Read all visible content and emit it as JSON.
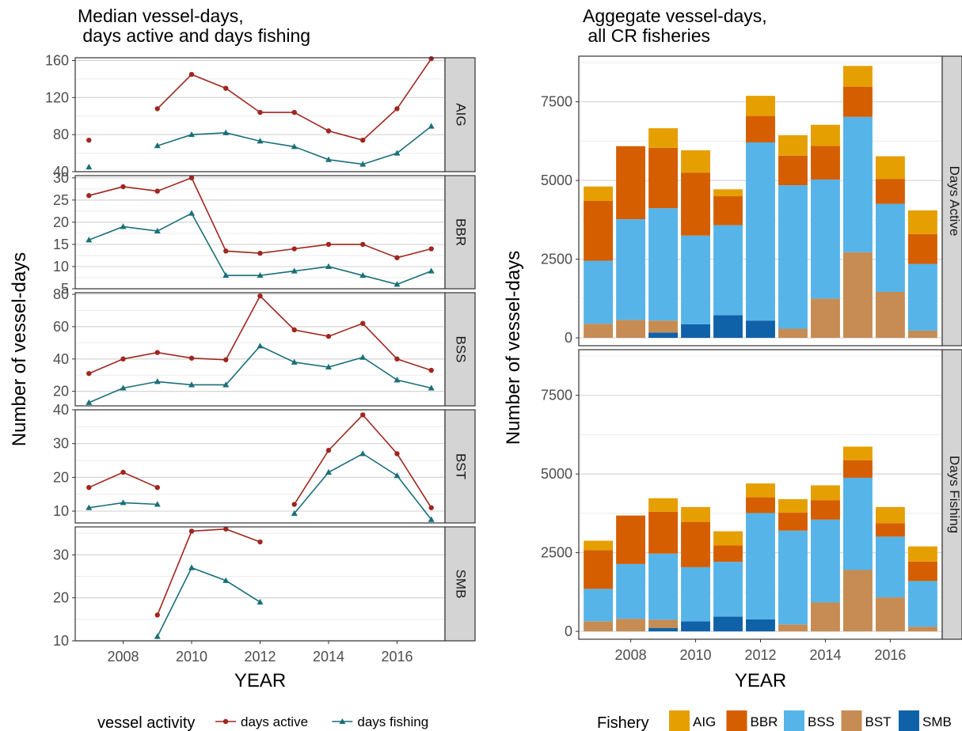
{
  "chart_data": [
    {
      "type": "line",
      "title": "Median vessel-days,\n days active and days fishing",
      "xlabel": "YEAR",
      "ylabel": "Number of vessel-days",
      "x_ticks": [
        2008,
        2010,
        2012,
        2014,
        2016
      ],
      "xlim": [
        2006.6,
        2017.4
      ],
      "legend": {
        "title": "vessel activity",
        "position": "bottom",
        "entries": [
          {
            "name": "days active",
            "color": "#a0261f",
            "marker": "circle"
          },
          {
            "name": "days fishing",
            "color": "#1a6f78",
            "marker": "triangle"
          }
        ]
      },
      "panels": [
        {
          "label": "AIG",
          "ylim": [
            40,
            163
          ],
          "y_ticks": [
            40,
            80,
            120,
            160
          ],
          "series": [
            {
              "name": "days active",
              "segments": [
                [
                  [
                    2007,
                    74
                  ]
                ],
                [
                  [
                    2009,
                    108
                  ],
                  [
                    2010,
                    145
                  ],
                  [
                    2011,
                    130
                  ],
                  [
                    2012,
                    104
                  ],
                  [
                    2013,
                    104
                  ],
                  [
                    2014,
                    84
                  ],
                  [
                    2015,
                    74
                  ],
                  [
                    2016,
                    108
                  ],
                  [
                    2017,
                    162
                  ]
                ]
              ]
            },
            {
              "name": "days fishing",
              "segments": [
                [
                  [
                    2007,
                    45
                  ]
                ],
                [
                  [
                    2009,
                    68
                  ],
                  [
                    2010,
                    80
                  ],
                  [
                    2011,
                    82
                  ],
                  [
                    2012,
                    73
                  ],
                  [
                    2013,
                    67
                  ],
                  [
                    2014,
                    53
                  ],
                  [
                    2015,
                    48
                  ],
                  [
                    2016,
                    60
                  ],
                  [
                    2017,
                    89
                  ]
                ]
              ]
            }
          ]
        },
        {
          "label": "BBR",
          "ylim": [
            5,
            30.5
          ],
          "y_ticks": [
            5,
            10,
            15,
            20,
            25,
            30
          ],
          "series": [
            {
              "name": "days active",
              "segments": [
                [
                  [
                    2007,
                    26
                  ],
                  [
                    2008,
                    28
                  ],
                  [
                    2009,
                    27
                  ],
                  [
                    2010,
                    30
                  ],
                  [
                    2011,
                    13.5
                  ],
                  [
                    2012,
                    13
                  ],
                  [
                    2013,
                    14
                  ],
                  [
                    2014,
                    15
                  ],
                  [
                    2015,
                    15
                  ],
                  [
                    2016,
                    12
                  ],
                  [
                    2017,
                    14
                  ]
                ]
              ]
            },
            {
              "name": "days fishing",
              "segments": [
                [
                  [
                    2007,
                    16
                  ],
                  [
                    2008,
                    19
                  ],
                  [
                    2009,
                    18
                  ],
                  [
                    2010,
                    22
                  ],
                  [
                    2011,
                    8
                  ],
                  [
                    2012,
                    8
                  ],
                  [
                    2013,
                    9
                  ],
                  [
                    2014,
                    10
                  ],
                  [
                    2015,
                    8
                  ],
                  [
                    2016,
                    6
                  ],
                  [
                    2017,
                    9
                  ]
                ]
              ]
            }
          ]
        },
        {
          "label": "BSS",
          "ylim": [
            11,
            81
          ],
          "y_ticks": [
            20,
            40,
            60,
            80
          ],
          "series": [
            {
              "name": "days active",
              "segments": [
                [
                  [
                    2007,
                    31
                  ],
                  [
                    2008,
                    40
                  ],
                  [
                    2009,
                    44
                  ],
                  [
                    2010,
                    40.5
                  ],
                  [
                    2011,
                    39.5
                  ],
                  [
                    2012,
                    79
                  ],
                  [
                    2013,
                    58
                  ],
                  [
                    2014,
                    54
                  ],
                  [
                    2015,
                    62
                  ],
                  [
                    2016,
                    40
                  ],
                  [
                    2017,
                    33
                  ]
                ]
              ]
            },
            {
              "name": "days fishing",
              "segments": [
                [
                  [
                    2007,
                    13
                  ],
                  [
                    2008,
                    22
                  ],
                  [
                    2009,
                    26
                  ],
                  [
                    2010,
                    24
                  ],
                  [
                    2011,
                    24
                  ],
                  [
                    2012,
                    48
                  ],
                  [
                    2013,
                    38
                  ],
                  [
                    2014,
                    35
                  ],
                  [
                    2015,
                    41
                  ],
                  [
                    2016,
                    27
                  ],
                  [
                    2017,
                    22
                  ]
                ]
              ]
            }
          ]
        },
        {
          "label": "BST",
          "ylim": [
            6.5,
            40
          ],
          "y_ticks": [
            10,
            20,
            30,
            40
          ],
          "series": [
            {
              "name": "days active",
              "segments": [
                [
                  [
                    2007,
                    17
                  ],
                  [
                    2008,
                    21.5
                  ],
                  [
                    2009,
                    17
                  ]
                ],
                [
                  [
                    2013,
                    12
                  ],
                  [
                    2014,
                    28
                  ],
                  [
                    2015,
                    38.5
                  ],
                  [
                    2016,
                    27
                  ],
                  [
                    2017,
                    11
                  ]
                ]
              ]
            },
            {
              "name": "days fishing",
              "segments": [
                [
                  [
                    2007,
                    11
                  ],
                  [
                    2008,
                    12.5
                  ],
                  [
                    2009,
                    12
                  ]
                ],
                [
                  [
                    2013,
                    9.3
                  ],
                  [
                    2014,
                    21.5
                  ],
                  [
                    2015,
                    27
                  ],
                  [
                    2016,
                    20.5
                  ],
                  [
                    2017,
                    7.5
                  ]
                ]
              ]
            }
          ]
        },
        {
          "label": "SMB",
          "ylim": [
            10,
            36.5
          ],
          "y_ticks": [
            10,
            20,
            30
          ],
          "series": [
            {
              "name": "days active",
              "segments": [
                [
                  [
                    2009,
                    16
                  ],
                  [
                    2010,
                    35.5
                  ],
                  [
                    2011,
                    36
                  ],
                  [
                    2012,
                    33
                  ]
                ]
              ]
            },
            {
              "name": "days fishing",
              "segments": [
                [
                  [
                    2009,
                    11
                  ],
                  [
                    2010,
                    27
                  ],
                  [
                    2011,
                    24
                  ],
                  [
                    2012,
                    19
                  ]
                ]
              ]
            }
          ]
        }
      ]
    },
    {
      "type": "bar",
      "stacked": true,
      "title": "Aggegate vessel-days,\n all CR fisheries",
      "xlabel": "YEAR",
      "ylabel": "Number of vessel-days",
      "categories": [
        2007,
        2008,
        2009,
        2010,
        2011,
        2012,
        2013,
        2014,
        2015,
        2016,
        2017
      ],
      "x_ticks": [
        2008,
        2010,
        2012,
        2014,
        2016
      ],
      "xlim": [
        2006.4,
        2017.6
      ],
      "ylim": [
        -250,
        8950
      ],
      "y_ticks": [
        0,
        2500,
        5000,
        7500
      ],
      "legend": {
        "title": "Fishery",
        "position": "bottom",
        "entries": [
          {
            "name": "AIG",
            "color": "#e69f00"
          },
          {
            "name": "BBR",
            "color": "#d55e00"
          },
          {
            "name": "BSS",
            "color": "#56b4e9"
          },
          {
            "name": "BST",
            "color": "#c68c53"
          },
          {
            "name": "SMB",
            "color": "#0f62a8"
          }
        ]
      },
      "stack_order": [
        "SMB",
        "BST",
        "BSS",
        "BBR",
        "AIG"
      ],
      "panels": [
        {
          "label": "Days Active",
          "series": [
            {
              "name": "SMB",
              "values": [
                0,
                0,
                170,
                430,
                720,
                550,
                0,
                0,
                0,
                0,
                0
              ]
            },
            {
              "name": "BST",
              "values": [
                450,
                570,
                380,
                0,
                0,
                0,
                290,
                1250,
                2720,
                1460,
                230
              ]
            },
            {
              "name": "BSS",
              "values": [
                2000,
                3200,
                3570,
                2820,
                2860,
                5660,
                4560,
                3780,
                4300,
                2800,
                2120
              ]
            },
            {
              "name": "BBR",
              "values": [
                1900,
                2320,
                1920,
                2000,
                920,
                840,
                940,
                1070,
                960,
                790,
                950
              ]
            },
            {
              "name": "AIG",
              "values": [
                460,
                0,
                620,
                710,
                220,
                640,
                650,
                670,
                660,
                720,
                750
              ]
            }
          ]
        },
        {
          "label": "Days Fishing",
          "series": [
            {
              "name": "SMB",
              "values": [
                0,
                0,
                110,
                320,
                470,
                380,
                0,
                0,
                0,
                0,
                0
              ]
            },
            {
              "name": "BST",
              "values": [
                320,
                400,
                260,
                0,
                0,
                0,
                220,
                920,
                1950,
                1080,
                150
              ]
            },
            {
              "name": "BSS",
              "values": [
                1030,
                1740,
                2100,
                1720,
                1740,
                3380,
                2980,
                2630,
                2930,
                1930,
                1450
              ]
            },
            {
              "name": "BBR",
              "values": [
                1230,
                1540,
                1330,
                1440,
                520,
                500,
                570,
                620,
                560,
                430,
                620
              ]
            },
            {
              "name": "AIG",
              "values": [
                300,
                0,
                430,
                470,
                450,
                440,
                430,
                470,
                430,
                510,
                480
              ]
            }
          ]
        }
      ]
    }
  ]
}
